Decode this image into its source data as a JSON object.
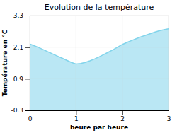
{
  "chart_data": {
    "type": "area",
    "title": "Evolution de la température",
    "xlabel": "heure par heure",
    "ylabel": "Température en °C",
    "x": [
      0,
      0.1,
      0.2,
      0.3,
      0.4,
      0.5,
      0.6,
      0.7,
      0.8,
      0.9,
      1.0,
      1.1,
      1.2,
      1.3,
      1.4,
      1.5,
      1.6,
      1.7,
      1.8,
      1.9,
      2.0,
      2.1,
      2.2,
      2.3,
      2.4,
      2.5,
      2.6,
      2.7,
      2.8,
      2.9,
      3.0
    ],
    "values": [
      2.22,
      2.15,
      2.08,
      2.0,
      1.92,
      1.84,
      1.76,
      1.68,
      1.6,
      1.52,
      1.46,
      1.48,
      1.52,
      1.58,
      1.65,
      1.73,
      1.82,
      1.91,
      2.0,
      2.1,
      2.2,
      2.28,
      2.35,
      2.42,
      2.49,
      2.55,
      2.61,
      2.67,
      2.72,
      2.76,
      2.8
    ],
    "color": "#82d4eb",
    "xlim": [
      0,
      3
    ],
    "ylim": [
      -0.3,
      3.3
    ],
    "xticks": [
      0,
      1,
      2,
      3
    ],
    "yticks": [
      -0.3,
      0.9,
      2.1,
      3.3
    ],
    "grid": true
  }
}
